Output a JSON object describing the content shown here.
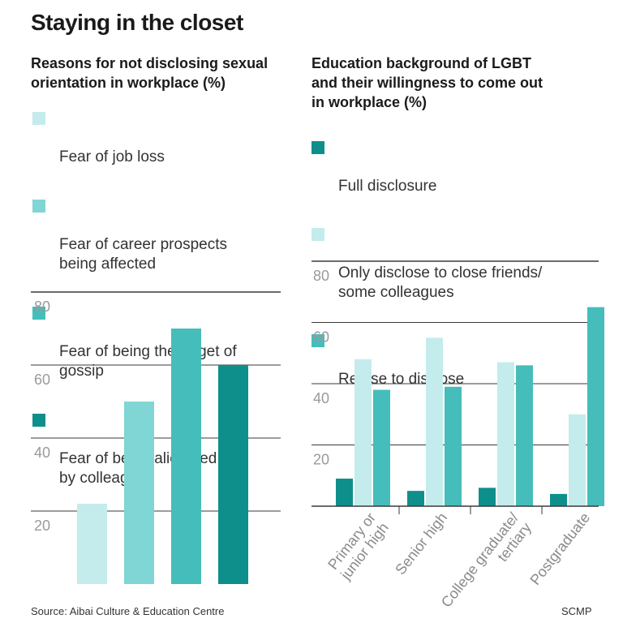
{
  "title": "Staying in the closet",
  "colors": {
    "c1": "#c4ecec",
    "c2": "#7fd6d4",
    "c3": "#45bdbb",
    "c4": "#0f8f8c",
    "grid": "#3a3a3a"
  },
  "footer": {
    "source": "Source: Aibai Culture & Education Centre",
    "credit": "SCMP"
  },
  "left_legend": [
    {
      "label": "Fear of job loss",
      "color": "#c4ecec"
    },
    {
      "label": "Fear of career prospects\nbeing affected",
      "color": "#7fd6d4"
    },
    {
      "label": "Fear of being the target of\ngossip",
      "color": "#45bdbb"
    },
    {
      "label": "Fear of being alienated\nby colleagues",
      "color": "#0f8f8c"
    }
  ],
  "right_legend": [
    {
      "label": "Full disclosure",
      "color": "#0f8f8c"
    },
    {
      "label": "Only disclose to close friends/\nsome colleagues",
      "color": "#c4ecec"
    },
    {
      "label": "Refuse to disclose",
      "color": "#45bdbb"
    }
  ],
  "chart_data": [
    {
      "type": "bar",
      "title": "Reasons for not disclosing sexual\norientation in workplace (%)",
      "categories": [
        "Fear of job loss",
        "Fear of career prospects being affected",
        "Fear of being the target of gossip",
        "Fear of being alienated by colleagues"
      ],
      "values": [
        22,
        50,
        70,
        60
      ],
      "colors": [
        "#c4ecec",
        "#7fd6d4",
        "#45bdbb",
        "#0f8f8c"
      ],
      "ylim": [
        0,
        80
      ],
      "yticks": [
        20,
        40,
        60,
        80
      ],
      "grid": true,
      "legend": "top"
    },
    {
      "type": "bar",
      "title": "Education background of LGBT\nand their willingness to come out\nin workplace (%)",
      "categories": [
        "Primary or\njunior high",
        "Senior high",
        "College graduate/\ntertiary",
        "Postgraduate"
      ],
      "series": [
        {
          "name": "Full disclosure",
          "values": [
            9,
            5,
            6,
            4
          ],
          "color": "#0f8f8c"
        },
        {
          "name": "Only disclose to close friends/ some colleagues",
          "values": [
            48,
            55,
            47,
            30
          ],
          "color": "#c4ecec"
        },
        {
          "name": "Refuse to disclose",
          "values": [
            38,
            39,
            46,
            65
          ],
          "color": "#45bdbb"
        }
      ],
      "ylim": [
        0,
        80
      ],
      "yticks": [
        20,
        40,
        60,
        80
      ],
      "grid": true,
      "legend": "top"
    }
  ]
}
